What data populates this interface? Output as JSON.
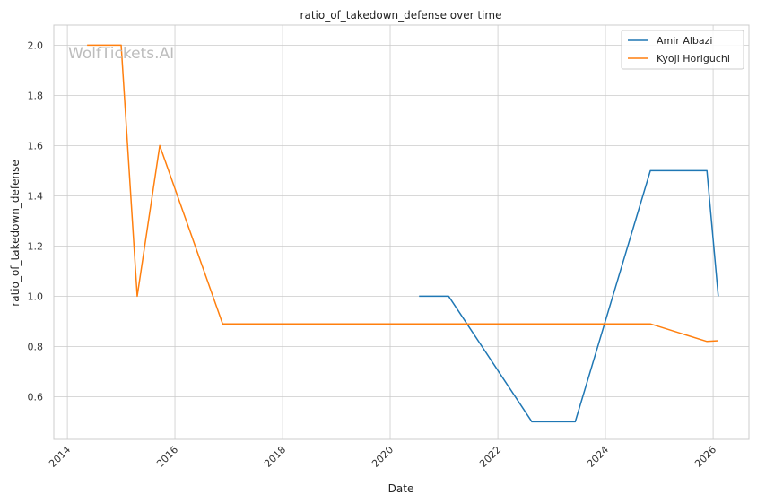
{
  "watermark": "WolfTickets.AI",
  "colors": {
    "amir": "#1f77b4",
    "kyoji": "#ff7f0e",
    "grid": "#cccccc",
    "frame": "#cccccc"
  },
  "chart_data": {
    "type": "line",
    "title": "ratio_of_takedown_defense over time",
    "xlabel": "Date",
    "ylabel": "ratio_of_takedown_defense",
    "x_axis": "date",
    "xlim": [
      "2013-10-01",
      "2026-09-01"
    ],
    "ylim": [
      0.43,
      2.08
    ],
    "xticks": [
      "2014",
      "2016",
      "2018",
      "2020",
      "2022",
      "2024",
      "2026"
    ],
    "yticks": [
      "0.6",
      "0.8",
      "1.0",
      "1.2",
      "1.4",
      "1.6",
      "1.8",
      "2.0"
    ],
    "grid": true,
    "legend_position": "top-right",
    "series": [
      {
        "name": "Amir Albazi",
        "points": [
          [
            "2020-07-15",
            1.0
          ],
          [
            "2021-02-01",
            1.0
          ],
          [
            "2022-08-20",
            0.5
          ],
          [
            "2023-06-10",
            0.5
          ],
          [
            "2024-11-01",
            1.5
          ],
          [
            "2025-11-20",
            1.5
          ],
          [
            "2026-02-05",
            1.0
          ]
        ]
      },
      {
        "name": "Kyoji Horiguchi",
        "points": [
          [
            "2014-05-15",
            2.0
          ],
          [
            "2015-01-01",
            2.0
          ],
          [
            "2015-04-20",
            1.0
          ],
          [
            "2015-09-20",
            1.6
          ],
          [
            "2016-11-20",
            0.89
          ],
          [
            "2024-11-01",
            0.89
          ],
          [
            "2025-11-20",
            0.82
          ],
          [
            "2026-02-05",
            0.823
          ]
        ]
      }
    ]
  }
}
